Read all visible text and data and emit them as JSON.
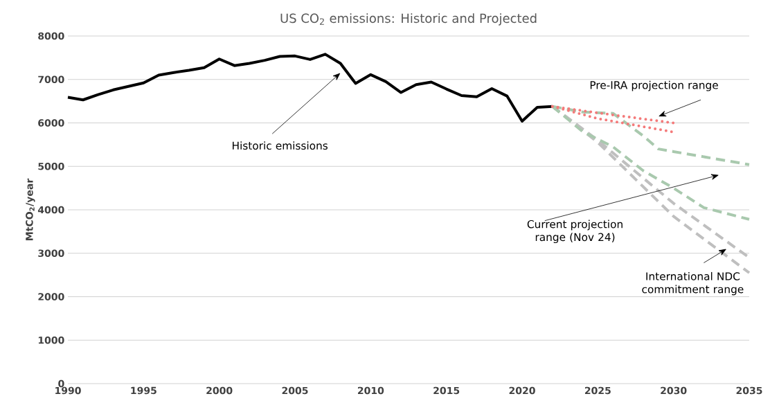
{
  "chart_data": {
    "type": "line",
    "title": "US CO$_{2}$ emissions: Historic and Projected",
    "ylabel": "MtCO$_{2}$/year",
    "xlim": [
      1990,
      2035
    ],
    "xticks": [
      1990,
      1995,
      2000,
      2005,
      2010,
      2015,
      2020,
      2025,
      2030,
      2035
    ],
    "ylim": [
      0,
      8000
    ],
    "yticks": [
      0,
      1000,
      2000,
      3000,
      4000,
      5000,
      6000,
      7000,
      8000
    ],
    "grid": "y",
    "marker": "none",
    "series": [
      {
        "color": "#000000",
        "line_style": "solid",
        "x": [
          1990,
          1991,
          1992,
          1993,
          1994,
          1995,
          1996,
          1997,
          1998,
          1999,
          2000,
          2001,
          2002,
          2003,
          2004,
          2005,
          2006,
          2007,
          2008,
          2009,
          2010,
          2011,
          2012,
          2013,
          2014,
          2015,
          2016,
          2017,
          2018,
          2019,
          2020,
          2021,
          2022
        ],
        "values": [
          6590,
          6530,
          6650,
          6760,
          6840,
          6920,
          7100,
          7160,
          7210,
          7270,
          7470,
          7320,
          7370,
          7440,
          7530,
          7540,
          7460,
          7580,
          7370,
          6910,
          7110,
          6950,
          6700,
          6880,
          6940,
          6780,
          6630,
          6600,
          6790,
          6620,
          6040,
          6360,
          6380
        ]
      },
      {
        "color": "#bfbfbf",
        "line_style": "dashed",
        "x": [
          2022,
          2025,
          2030,
          2035
        ],
        "values": [
          6380,
          5600,
          4150,
          2900
        ]
      },
      {
        "color": "#bfbfbf",
        "line_style": "dashed",
        "x": [
          2022,
          2025,
          2030,
          2035
        ],
        "values": [
          6380,
          5550,
          3850,
          2550
        ]
      },
      {
        "color": "#a9c9ae",
        "line_style": "dashed",
        "x": [
          2022,
          2024,
          2026,
          2028,
          2029,
          2030,
          2035
        ],
        "values": [
          6380,
          6250,
          6220,
          5700,
          5400,
          5340,
          5040
        ]
      },
      {
        "color": "#a9c9ae",
        "line_style": "dashed",
        "x": [
          2022,
          2024,
          2026,
          2028,
          2030,
          2032,
          2035
        ],
        "values": [
          6380,
          5800,
          5450,
          4900,
          4500,
          4050,
          3780
        ]
      },
      {
        "color": "#f47a7a",
        "line_style": "dotted",
        "x": [
          2022,
          2025,
          2030
        ],
        "values": [
          6380,
          6230,
          6000
        ]
      },
      {
        "color": "#f47a7a",
        "line_style": "dotted",
        "x": [
          2022,
          2025,
          2030
        ],
        "values": [
          6380,
          6100,
          5790
        ]
      }
    ],
    "annotations": [
      "Historic emissions",
      "Pre-IRA projection range",
      "Current projection range (Nov 24)",
      "International NDC commitment range"
    ]
  }
}
